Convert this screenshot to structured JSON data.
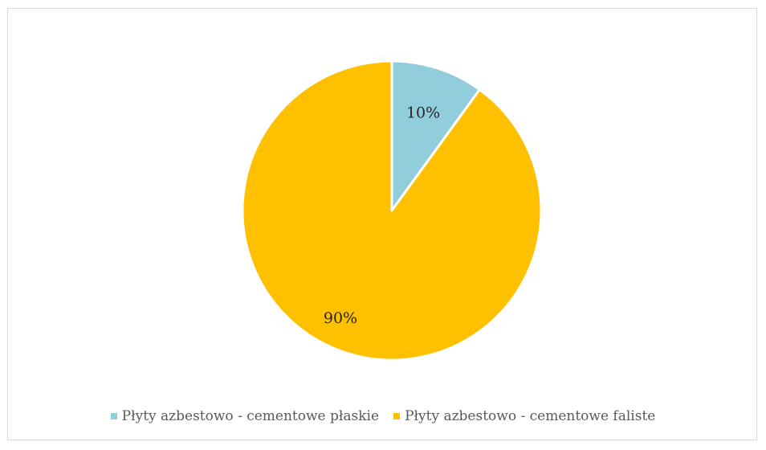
{
  "chart_data": {
    "type": "pie",
    "categories": [
      "Płyty azbestowo - cementowe płaskie",
      "Płyty azbestowo - cementowe faliste"
    ],
    "values": [
      10,
      90
    ],
    "labels": [
      "10%",
      "90%"
    ],
    "colors": [
      "#92cddc",
      "#ffc000"
    ],
    "legend_position": "bottom"
  }
}
